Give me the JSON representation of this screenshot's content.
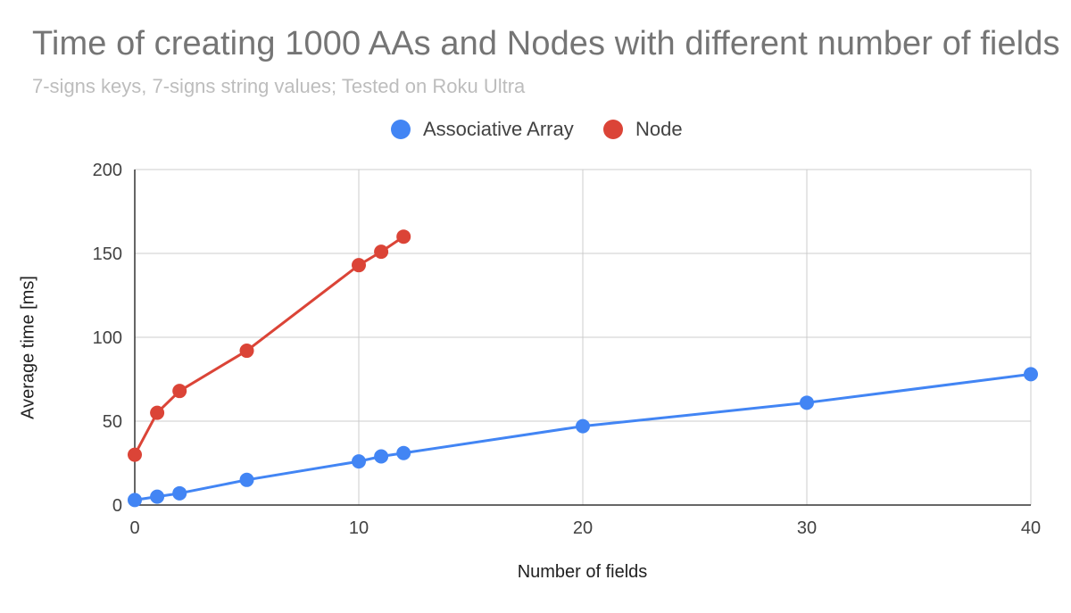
{
  "chart_data": {
    "type": "line",
    "title": "Time of creating 1000 AAs and Nodes with different number of fields",
    "subtitle": "7-signs keys, 7-signs string values; Tested on Roku Ultra",
    "xlabel": "Number of fields",
    "ylabel": "Average time [ms]",
    "xlim": [
      0,
      40
    ],
    "ylim": [
      0,
      200
    ],
    "xticks": [
      0,
      10,
      20,
      30,
      40
    ],
    "yticks": [
      0,
      50,
      100,
      150,
      200
    ],
    "grid": true,
    "legend_position": "top",
    "series": [
      {
        "name": "Associative Array",
        "color": "#4285f4",
        "x": [
          0,
          1,
          2,
          5,
          10,
          11,
          12,
          20,
          30,
          40
        ],
        "y": [
          3,
          5,
          7,
          15,
          26,
          29,
          31,
          47,
          61,
          78
        ]
      },
      {
        "name": "Node",
        "color": "#db4437",
        "x": [
          0,
          1,
          2,
          5,
          10,
          11,
          12
        ],
        "y": [
          30,
          55,
          68,
          92,
          143,
          151,
          160
        ]
      }
    ]
  }
}
